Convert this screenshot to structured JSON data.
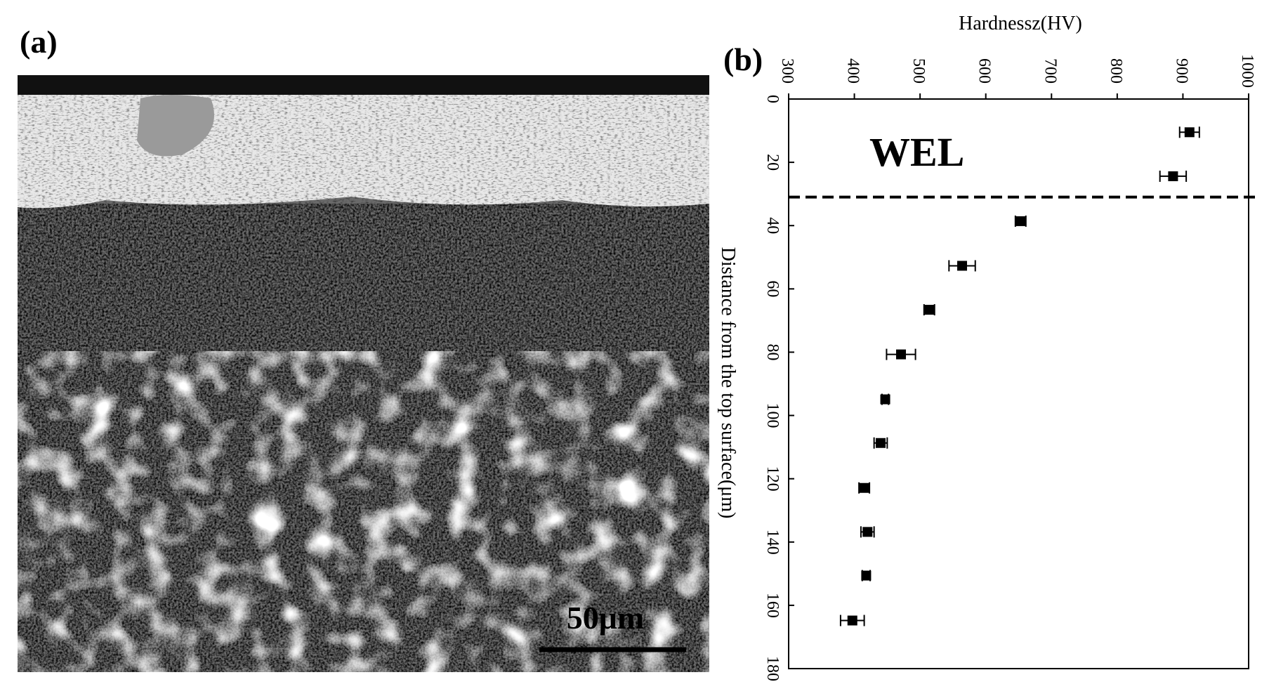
{
  "figure": {
    "panel_a_label": "(a)",
    "scale_bar_label": "50μm"
  },
  "chart_data": {
    "type": "scatter",
    "panel_label": "(b)",
    "xlabel": "Hardnessz(HV)",
    "ylabel": "Distance from the top surface(μm)",
    "x": [
      910,
      885,
      653,
      564,
      514,
      471,
      447,
      440,
      415,
      420,
      418,
      397
    ],
    "x_errors": [
      15,
      20,
      8,
      20,
      8,
      22,
      5,
      10,
      8,
      10,
      6,
      18
    ],
    "values": [
      10.5,
      24.4,
      38.6,
      52.7,
      66.6,
      80.7,
      94.9,
      108.7,
      122.9,
      136.8,
      150.6,
      164.8
    ],
    "color": "#000000",
    "xlim": [
      300,
      1000
    ],
    "xticks": [
      300,
      400,
      500,
      600,
      700,
      800,
      900,
      1000
    ],
    "ylim": [
      0,
      180
    ],
    "yticks": [
      0,
      20,
      40,
      60,
      80,
      100,
      120,
      140,
      160,
      180
    ],
    "y_inverted": true,
    "xaxis_position": "top",
    "hline": 31,
    "annotation": "WEL"
  }
}
